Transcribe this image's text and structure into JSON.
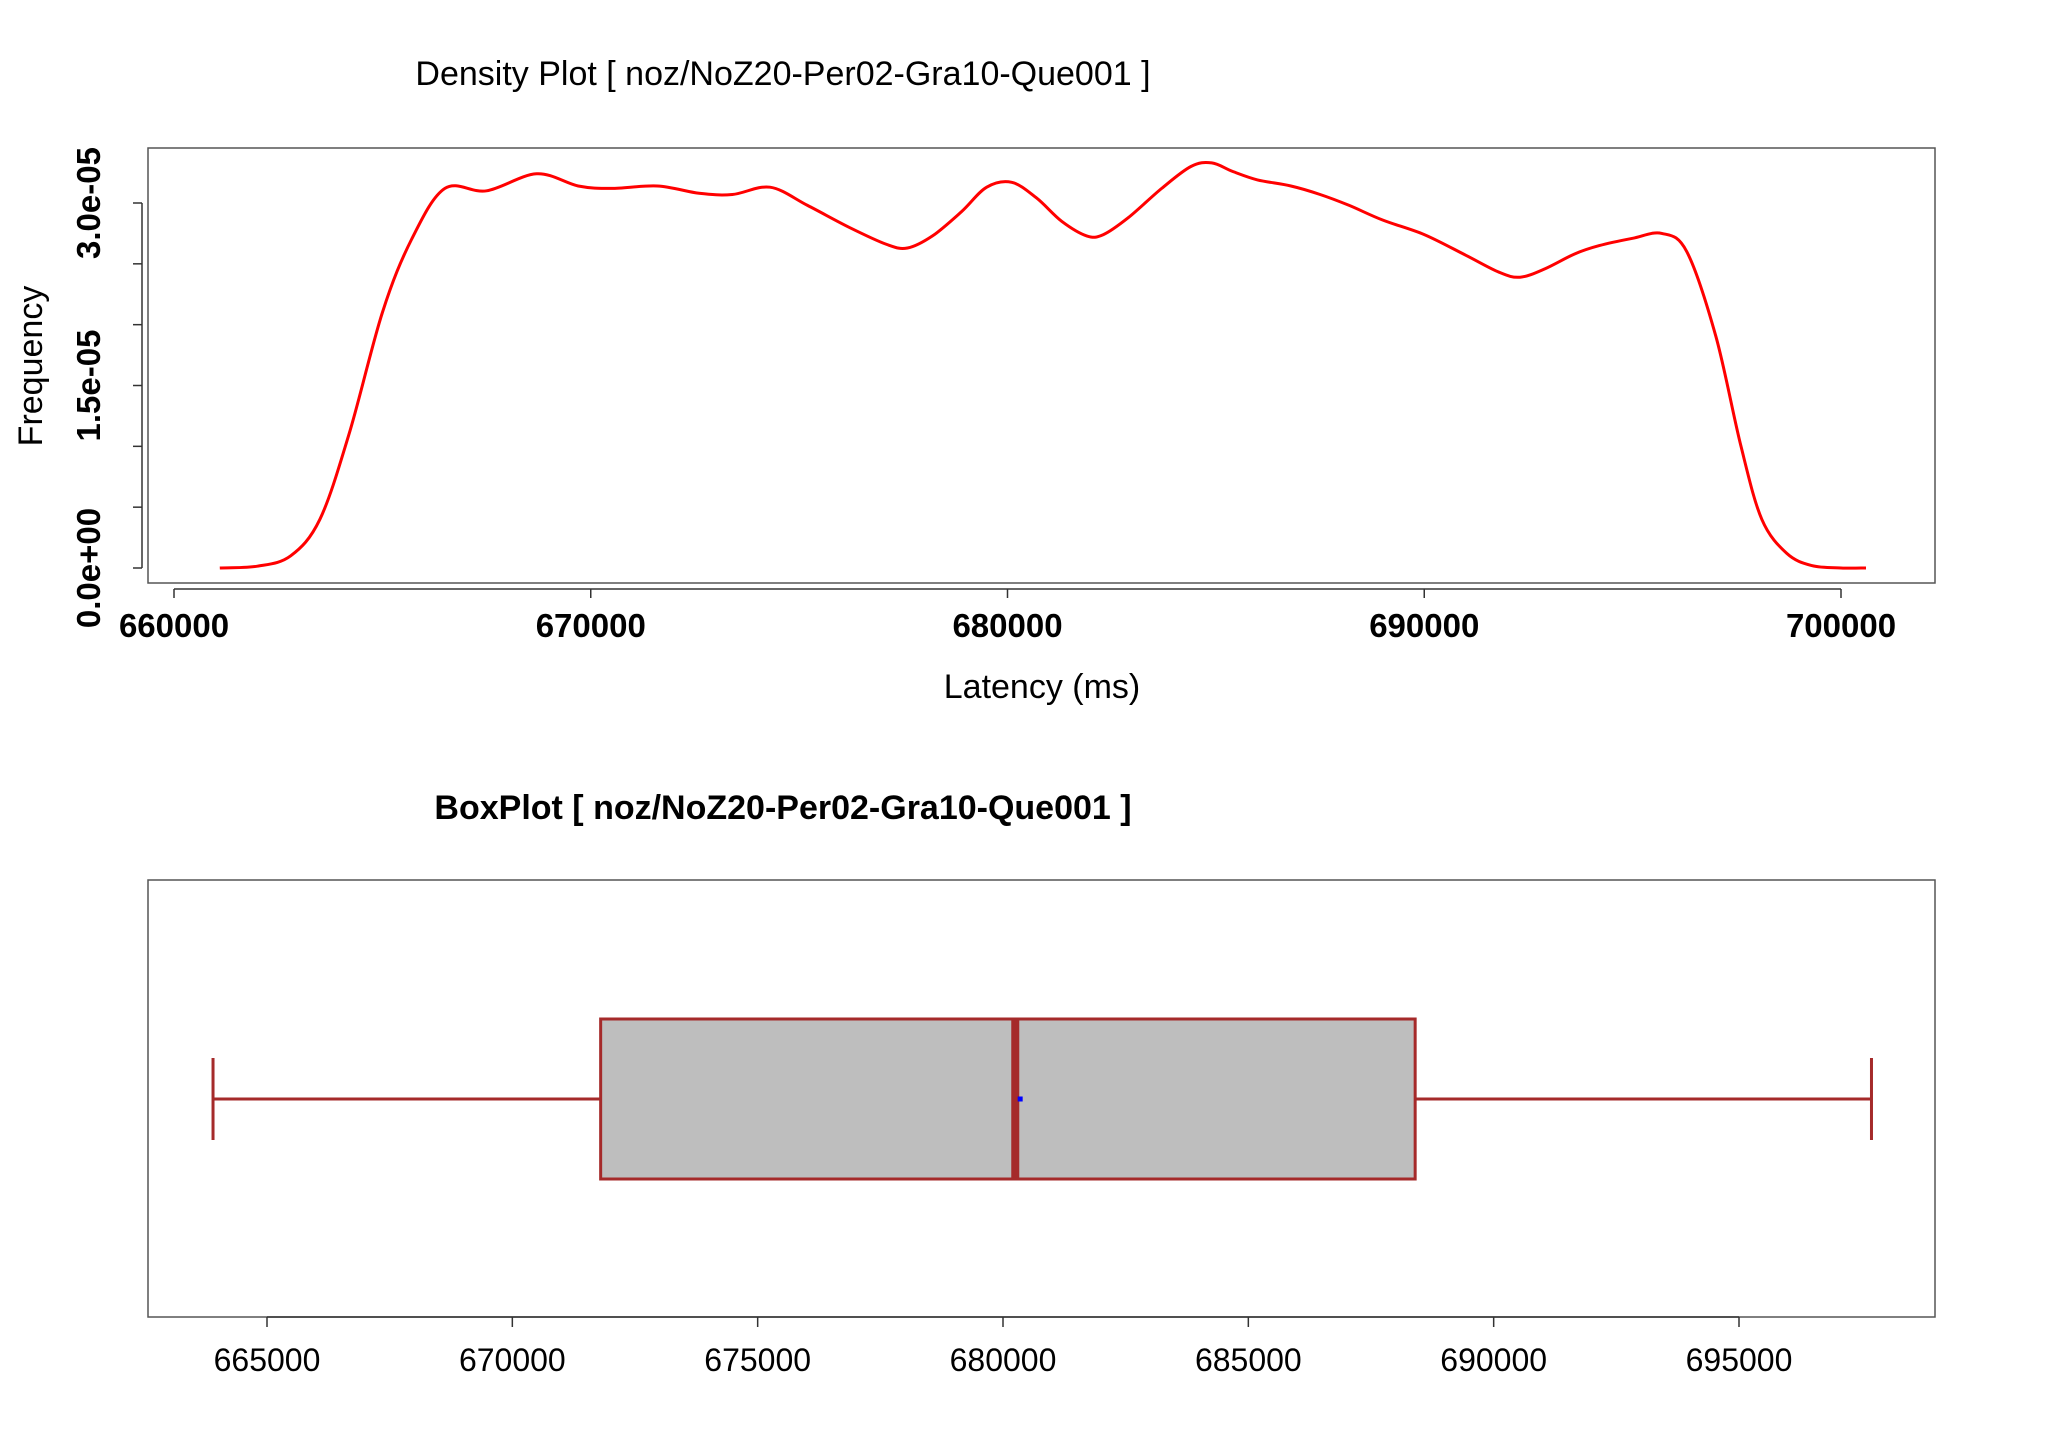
{
  "chart_data": [
    {
      "type": "line",
      "title": "Density Plot [ noz/NoZ20-Per02-Gra10-Que001 ]",
      "xlabel": "Latency (ms)",
      "ylabel": "Frequency",
      "xlim": [
        660000,
        700000
      ],
      "ylim": [
        0,
        3.3e-05
      ],
      "x_ticks": [
        660000,
        670000,
        680000,
        690000,
        700000
      ],
      "x_tick_labels": [
        "660000",
        "670000",
        "680000",
        "690000",
        "700000"
      ],
      "y_ticks": [
        0,
        5e-06,
        1e-05,
        1.5e-05,
        2e-05,
        2.5e-05,
        3e-05
      ],
      "y_tick_labels": [
        {
          "value": 0,
          "label": "0.0e+00"
        },
        {
          "value": 1.5e-05,
          "label": "1.5e-05"
        },
        {
          "value": 3e-05,
          "label": "3.0e-05"
        }
      ],
      "grid": false,
      "line_color": "#ff0000",
      "series": [
        {
          "x": [
            661100,
            662000,
            662800,
            663500,
            664200,
            665000,
            665700,
            666500,
            667500,
            668700,
            669700,
            670500,
            671600,
            672600,
            673400,
            674300,
            675200,
            676200,
            677100,
            677600,
            678200,
            678900,
            679500,
            680100,
            680700,
            681300,
            681900,
            682300,
            682900,
            683700,
            684400,
            684900,
            685400,
            686000,
            686800,
            687500,
            688200,
            689000,
            690000,
            691000,
            691800,
            692300,
            692900,
            693600,
            694200,
            695000,
            695700,
            696300,
            697000,
            697600,
            698100,
            698700,
            699300,
            700000,
            700600
          ],
          "y": [
            0,
            1.5e-07,
            1e-06,
            4e-06,
            1.1e-05,
            2.1e-05,
            2.7e-05,
            3.12e-05,
            3.1e-05,
            3.24e-05,
            3.14e-05,
            3.12e-05,
            3.14e-05,
            3.08e-05,
            3.07e-05,
            3.13e-05,
            2.98e-05,
            2.8e-05,
            2.66e-05,
            2.63e-05,
            2.73e-05,
            2.93e-05,
            3.13e-05,
            3.17e-05,
            3.04e-05,
            2.85e-05,
            2.73e-05,
            2.74e-05,
            2.88e-05,
            3.12e-05,
            3.3e-05,
            3.33e-05,
            3.26e-05,
            3.19e-05,
            3.14e-05,
            3.07e-05,
            2.98e-05,
            2.86e-05,
            2.74e-05,
            2.57e-05,
            2.43e-05,
            2.39e-05,
            2.46e-05,
            2.58e-05,
            2.65e-05,
            2.71e-05,
            2.75e-05,
            2.6e-05,
            1.9e-05,
            1e-05,
            4e-06,
            1.2e-06,
            2e-07,
            0,
            0
          ]
        }
      ]
    },
    {
      "type": "box",
      "title": "BoxPlot [ noz/NoZ20-Per02-Gra10-Que001 ]",
      "xlim": [
        663000,
        698500
      ],
      "x_ticks": [
        665000,
        670000,
        675000,
        680000,
        685000,
        690000,
        695000
      ],
      "x_tick_labels": [
        "665000",
        "670000",
        "675000",
        "680000",
        "685000",
        "690000",
        "695000"
      ],
      "whisker_low": 663900,
      "q1": 671800,
      "median": 680250,
      "mean": 680350,
      "q3": 688400,
      "whisker_high": 697700,
      "box_fill": "#bebebe",
      "box_stroke": "#a52a2a",
      "mean_color": "#0000ff"
    }
  ]
}
